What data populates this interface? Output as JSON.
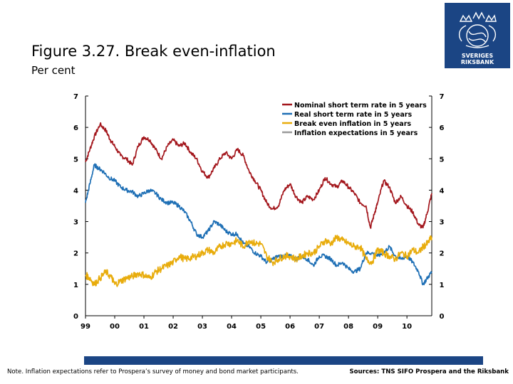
{
  "header": {
    "title": "Figure  3.27. Break even-inflation",
    "unit": "Per cent",
    "logo_text": [
      "SVERIGES",
      "RIKSBANK"
    ]
  },
  "footer": {
    "note": "Note. Inflation expectations refer to Prospera’s survey of money and bond market participants.",
    "source": "Sources: TNS SIFO Prospera and the Riksbank"
  },
  "colors": {
    "brand": "#1b4584",
    "nominal": "#a3161c",
    "real": "#1e6fb5",
    "breakeven": "#e8ac0c",
    "expectations": "#9a9a9a"
  },
  "chart_data": {
    "type": "line",
    "title": "",
    "xlabel": "",
    "ylabel": "Per cent",
    "xlim": [
      1999,
      2010.85
    ],
    "ylim": [
      0,
      7
    ],
    "yticks": [
      0,
      1,
      2,
      3,
      4,
      5,
      6,
      7
    ],
    "xtick_labels": [
      "99",
      "00",
      "01",
      "02",
      "03",
      "04",
      "05",
      "06",
      "07",
      "08",
      "09",
      "10"
    ],
    "legend_position": "top-right",
    "series": [
      {
        "name": "Nominal short term rate in 5 years",
        "color": "#a3161c",
        "x": [
          1999.0,
          1999.15,
          1999.3,
          1999.5,
          1999.7,
          1999.85,
          2000.0,
          2000.2,
          2000.4,
          2000.6,
          2000.8,
          2001.0,
          2001.2,
          2001.4,
          2001.6,
          2001.8,
          2002.0,
          2002.2,
          2002.4,
          2002.6,
          2002.8,
          2003.0,
          2003.2,
          2003.4,
          2003.6,
          2003.8,
          2004.0,
          2004.2,
          2004.4,
          2004.6,
          2004.8,
          2005.0,
          2005.2,
          2005.4,
          2005.6,
          2005.8,
          2006.0,
          2006.2,
          2006.4,
          2006.6,
          2006.8,
          2007.0,
          2007.2,
          2007.4,
          2007.6,
          2007.8,
          2008.0,
          2008.2,
          2008.4,
          2008.6,
          2008.75,
          2008.9,
          2009.0,
          2009.2,
          2009.4,
          2009.6,
          2009.8,
          2010.0,
          2010.2,
          2010.4,
          2010.55,
          2010.7,
          2010.85
        ],
        "values": [
          4.9,
          5.3,
          5.7,
          6.1,
          5.9,
          5.6,
          5.4,
          5.1,
          5.0,
          4.8,
          5.4,
          5.7,
          5.6,
          5.3,
          5.0,
          5.4,
          5.6,
          5.4,
          5.5,
          5.2,
          5.0,
          4.6,
          4.4,
          4.7,
          5.0,
          5.2,
          5.0,
          5.3,
          5.1,
          4.6,
          4.3,
          4.0,
          3.6,
          3.4,
          3.5,
          4.0,
          4.2,
          3.8,
          3.6,
          3.8,
          3.7,
          4.0,
          4.4,
          4.2,
          4.1,
          4.3,
          4.1,
          3.9,
          3.6,
          3.5,
          2.8,
          3.3,
          3.6,
          4.3,
          4.1,
          3.6,
          3.8,
          3.5,
          3.3,
          2.9,
          2.8,
          3.3,
          3.9
        ]
      },
      {
        "name": "Real short term rate in 5 years",
        "color": "#1e6fb5",
        "x": [
          1999.0,
          1999.15,
          1999.3,
          1999.45,
          1999.6,
          1999.8,
          2000.0,
          2000.2,
          2000.4,
          2000.6,
          2000.8,
          2001.0,
          2001.2,
          2001.4,
          2001.6,
          2001.8,
          2002.0,
          2002.2,
          2002.4,
          2002.6,
          2002.8,
          2003.0,
          2003.2,
          2003.4,
          2003.6,
          2003.8,
          2004.0,
          2004.2,
          2004.4,
          2004.6,
          2004.8,
          2005.0,
          2005.2,
          2005.4,
          2005.6,
          2005.8,
          2006.0,
          2006.2,
          2006.4,
          2006.6,
          2006.8,
          2007.0,
          2007.2,
          2007.4,
          2007.6,
          2007.8,
          2008.0,
          2008.2,
          2008.4,
          2008.6,
          2008.8,
          2009.0,
          2009.2,
          2009.4,
          2009.6,
          2009.8,
          2010.0,
          2010.2,
          2010.4,
          2010.55,
          2010.7,
          2010.85
        ],
        "values": [
          3.6,
          4.2,
          4.8,
          4.7,
          4.6,
          4.4,
          4.3,
          4.1,
          4.0,
          3.95,
          3.8,
          3.9,
          4.0,
          3.9,
          3.7,
          3.6,
          3.6,
          3.5,
          3.3,
          3.0,
          2.6,
          2.5,
          2.7,
          3.0,
          2.9,
          2.7,
          2.6,
          2.6,
          2.3,
          2.2,
          2.0,
          1.9,
          1.7,
          1.8,
          1.9,
          1.9,
          1.9,
          1.8,
          1.9,
          1.8,
          1.6,
          1.9,
          1.9,
          1.8,
          1.6,
          1.7,
          1.5,
          1.4,
          1.5,
          2.0,
          2.0,
          1.9,
          2.0,
          2.2,
          1.9,
          1.8,
          1.9,
          1.7,
          1.4,
          1.0,
          1.2,
          1.4
        ]
      },
      {
        "name": "Break even inflation in 5 years",
        "color": "#e8ac0c",
        "x": [
          1999.0,
          1999.15,
          1999.3,
          1999.5,
          1999.7,
          1999.9,
          2000.0,
          2000.2,
          2000.4,
          2000.6,
          2000.8,
          2001.0,
          2001.2,
          2001.4,
          2001.6,
          2001.8,
          2002.0,
          2002.2,
          2002.4,
          2002.6,
          2002.8,
          2003.0,
          2003.2,
          2003.4,
          2003.6,
          2003.8,
          2004.0,
          2004.2,
          2004.4,
          2004.6,
          2004.8,
          2005.0,
          2005.2,
          2005.4,
          2005.6,
          2005.8,
          2006.0,
          2006.2,
          2006.4,
          2006.6,
          2006.8,
          2007.0,
          2007.2,
          2007.4,
          2007.6,
          2007.8,
          2008.0,
          2008.2,
          2008.4,
          2008.6,
          2008.8,
          2009.0,
          2009.2,
          2009.4,
          2009.6,
          2009.8,
          2010.0,
          2010.2,
          2010.4,
          2010.55,
          2010.7,
          2010.85
        ],
        "values": [
          1.3,
          1.2,
          1.0,
          1.2,
          1.4,
          1.2,
          1.0,
          1.1,
          1.2,
          1.25,
          1.35,
          1.3,
          1.2,
          1.4,
          1.5,
          1.6,
          1.7,
          1.9,
          1.8,
          1.85,
          1.9,
          2.0,
          2.1,
          2.0,
          2.2,
          2.3,
          2.3,
          2.4,
          2.2,
          2.4,
          2.3,
          2.3,
          1.9,
          1.7,
          1.8,
          1.9,
          1.9,
          1.8,
          1.9,
          2.0,
          2.0,
          2.2,
          2.4,
          2.3,
          2.5,
          2.4,
          2.3,
          2.2,
          2.2,
          1.8,
          1.7,
          2.1,
          2.0,
          1.9,
          1.8,
          2.0,
          1.9,
          2.1,
          2.0,
          2.2,
          2.3,
          2.5
        ]
      },
      {
        "name": "Inflation expectations in 5 years",
        "color": "#9a9a9a",
        "x": [],
        "values": []
      }
    ]
  }
}
